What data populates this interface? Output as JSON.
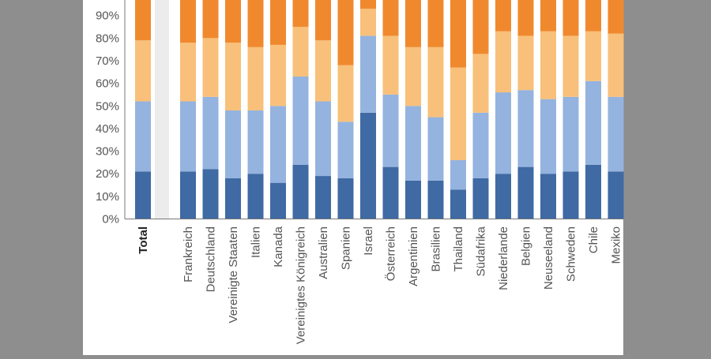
{
  "colors": {
    "background": "#8e8e8e",
    "panel": "#ffffff",
    "total_band": "#ececec",
    "seg1": "#3f6aa3",
    "seg2": "#94b3df",
    "seg3": "#f8c07a",
    "seg4": "#f0892e",
    "axis_text": "#555555"
  },
  "chart_data": {
    "type": "bar",
    "stacked": true,
    "stack_mode": "percent",
    "ylim": [
      0,
      100
    ],
    "yticks": [
      "0%",
      "10%",
      "20%",
      "30%",
      "40%",
      "50%",
      "60%",
      "70%",
      "80%",
      "90%"
    ],
    "categories": [
      "Total",
      "Frankreich",
      "Deutschland",
      "Vereinigte Staaten",
      "Italien",
      "Kanada",
      "Vereinigtes Königreich",
      "Australien",
      "Spanien",
      "Israel",
      "Österreich",
      "Argentinien",
      "Brasilien",
      "Thailand",
      "Südafrika",
      "Niederlande",
      "Belgien",
      "Neuseeland",
      "Schweden",
      "Chile",
      "Mexiko"
    ],
    "bold_categories": [
      "Total"
    ],
    "grid": false,
    "legend": "none",
    "series": [
      {
        "values": [
          21,
          21,
          22,
          18,
          20,
          16,
          24,
          19,
          18,
          47,
          23,
          17,
          17,
          13,
          18,
          20,
          23,
          20,
          21,
          24,
          21
        ]
      },
      {
        "values": [
          31,
          31,
          32,
          30,
          28,
          34,
          39,
          33,
          25,
          34,
          32,
          33,
          28,
          13,
          29,
          36,
          34,
          33,
          33,
          37,
          33
        ]
      },
      {
        "values": [
          27,
          26,
          26,
          30,
          28,
          27,
          22,
          27,
          25,
          12,
          26,
          26,
          31,
          41,
          26,
          27,
          24,
          30,
          27,
          22,
          28
        ]
      },
      {
        "values": [
          21,
          22,
          20,
          22,
          24,
          23,
          15,
          21,
          32,
          7,
          19,
          24,
          24,
          33,
          27,
          17,
          19,
          17,
          19,
          17,
          18
        ]
      }
    ]
  }
}
